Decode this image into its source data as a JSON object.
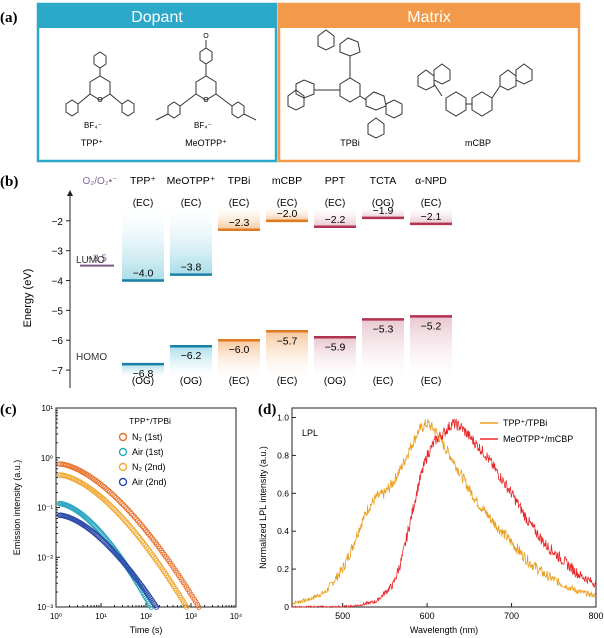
{
  "panel_a": {
    "label": "(a)",
    "dopant_title": "Dopant",
    "matrix_title": "Matrix",
    "dopant_colors": {
      "box": "#2ca9c9"
    },
    "matrix_colors": {
      "box": "#f39a4a"
    },
    "molecules": [
      {
        "name": "TPP⁺",
        "counter": "BF₄⁻"
      },
      {
        "name": "MeOTPP⁺",
        "counter": "BF₄⁻"
      },
      {
        "name": "TPBi"
      },
      {
        "name": "mCBP"
      }
    ],
    "mol_labels": {
      "tpp": "TPP⁺",
      "meotpp": "MeOTPP⁺",
      "tpbi": "TPBi",
      "mcbp": "mCBP",
      "bf4": "BF₄⁻"
    }
  },
  "panel_b": {
    "label": "(b)",
    "ylabel": "Energy (eV)",
    "yticks": [
      -2,
      -3,
      -4,
      -5,
      -6,
      -7
    ],
    "ylim": [
      -7.6,
      -0.9
    ],
    "lumo_label": "LUMO",
    "homo_label": "HOMO",
    "redox": {
      "name": "O₂/O₂•⁻",
      "value": -3.5,
      "value_label": "−3.5"
    },
    "columns": [
      {
        "name": "TPP⁺",
        "lumo": -4.0,
        "homo": -6.8,
        "lumo_label": "−4.0",
        "homo_label": "−6.8",
        "lumo_src": "(EC)",
        "homo_src": "(OG)",
        "color": "blue"
      },
      {
        "name": "MeOTPP⁺",
        "lumo": -3.8,
        "homo": -6.2,
        "lumo_label": "−3.8",
        "homo_label": "−6.2",
        "lumo_src": "(EC)",
        "homo_src": "(OG)",
        "color": "blue"
      },
      {
        "name": "TPBi",
        "lumo": -2.3,
        "homo": -6.0,
        "lumo_label": "−2.3",
        "homo_label": "−6.0",
        "lumo_src": "(EC)",
        "homo_src": "(EC)",
        "color": "orange"
      },
      {
        "name": "mCBP",
        "lumo": -2.0,
        "homo": -5.7,
        "lumo_label": "−2.0",
        "homo_label": "−5.7",
        "lumo_src": "(EC)",
        "homo_src": "(EC)",
        "color": "orange"
      },
      {
        "name": "PPT",
        "lumo": -2.2,
        "homo": -5.9,
        "lumo_label": "−2.2",
        "homo_label": "−5.9",
        "lumo_src": "(EC)",
        "homo_src": "(OG)",
        "color": "rose"
      },
      {
        "name": "TCTA",
        "lumo": -1.9,
        "homo": -5.3,
        "lumo_label": "−1.9",
        "homo_label": "−5.3",
        "lumo_src": "(OG)",
        "homo_src": "(EC)",
        "color": "rose"
      },
      {
        "name": "α-NPD",
        "lumo": -2.1,
        "homo": -5.2,
        "lumo_label": "−2.1",
        "homo_label": "−5.2",
        "lumo_src": "(EC)",
        "homo_src": "(EC)",
        "color": "rose"
      }
    ]
  },
  "chart_data": [
    {
      "type": "scatter",
      "panel": "(c)",
      "title": "TPP⁺/TPBi",
      "xlabel": "Time (s)",
      "ylabel": "Emission intensity (a.u.)",
      "xscale": "log",
      "yscale": "log",
      "xlim": [
        1,
        10000
      ],
      "ylim": [
        0.001,
        10
      ],
      "xtick_labels": [
        "10⁰",
        "10¹",
        "10²",
        "10³",
        "10⁴"
      ],
      "ytick_labels": [
        "10⁻³",
        "10⁻²",
        "10⁻¹",
        "10⁰",
        "10¹"
      ],
      "series": [
        {
          "name": "N₂ (1st)",
          "color": "#e8702a",
          "t0": 1.2,
          "i0": 0.75,
          "tend": 1500
        },
        {
          "name": "Air (1st)",
          "color": "#2aa7c0",
          "t0": 1.2,
          "i0": 0.12,
          "tend": 130
        },
        {
          "name": "N₂ (2nd)",
          "color": "#f0a830",
          "t0": 1.2,
          "i0": 0.45,
          "tend": 800
        },
        {
          "name": "Air (2nd)",
          "color": "#2c4aa8",
          "t0": 1.2,
          "i0": 0.07,
          "tend": 170
        }
      ],
      "legend_labels": [
        "N₂ (1st)",
        "Air (1st)",
        "N₂ (2nd)",
        "Air (2nd)"
      ]
    },
    {
      "type": "line",
      "panel": "(d)",
      "annotation": "LPL",
      "xlabel": "Wavelength (nm)",
      "ylabel": "Normalized LPL intensity (a.u.)",
      "xlim": [
        440,
        800
      ],
      "ylim": [
        0,
        1.05
      ],
      "xticks": [
        500,
        600,
        700,
        800
      ],
      "yticks": [
        0,
        0.2,
        0.4,
        0.6,
        0.8,
        1.0
      ],
      "ytick_labels": [
        "0",
        "0.2",
        "0.4",
        "0.6",
        "0.8",
        "1.0"
      ],
      "series": [
        {
          "name": "TPP⁺/TPBi",
          "color": "#e8a020",
          "x": [
            440,
            460,
            480,
            500,
            510,
            520,
            530,
            540,
            550,
            560,
            570,
            580,
            590,
            600,
            610,
            620,
            630,
            640,
            650,
            660,
            680,
            700,
            720,
            740,
            760,
            780,
            800
          ],
          "y": [
            0.02,
            0.04,
            0.08,
            0.2,
            0.3,
            0.42,
            0.52,
            0.58,
            0.6,
            0.66,
            0.74,
            0.84,
            0.93,
            0.97,
            0.93,
            0.85,
            0.78,
            0.7,
            0.62,
            0.55,
            0.44,
            0.34,
            0.24,
            0.17,
            0.12,
            0.08,
            0.06
          ]
        },
        {
          "name": "MeOTPP⁺/mCBP",
          "color": "#e8282a",
          "x": [
            440,
            500,
            520,
            540,
            560,
            570,
            580,
            590,
            600,
            610,
            620,
            630,
            640,
            650,
            660,
            670,
            680,
            700,
            720,
            740,
            760,
            780,
            800
          ],
          "y": [
            0.0,
            0.0,
            0.01,
            0.03,
            0.12,
            0.25,
            0.45,
            0.65,
            0.8,
            0.88,
            0.92,
            0.97,
            0.95,
            0.9,
            0.85,
            0.8,
            0.73,
            0.6,
            0.45,
            0.33,
            0.25,
            0.17,
            0.12
          ]
        }
      ],
      "legend_labels": [
        "TPP⁺/TPBi",
        "MeOTPP⁺/mCBP"
      ]
    }
  ]
}
